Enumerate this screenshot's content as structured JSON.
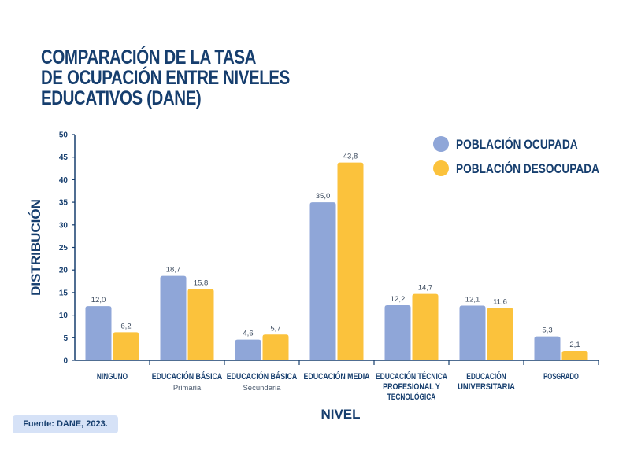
{
  "chart_data": {
    "type": "bar",
    "title": [
      "COMPARACIÓN DE LA TASA",
      "DE OCUPACIÓN ENTRE NIVELES",
      "EDUCATIVOS (DANE)"
    ],
    "xlabel": "NIVEL",
    "ylabel": "DISTRIBUCIÓN",
    "ylim": [
      0,
      50
    ],
    "yticks": [
      0,
      5,
      10,
      15,
      20,
      25,
      30,
      35,
      40,
      45,
      50
    ],
    "categories": [
      {
        "label": [
          "NINGUNO"
        ],
        "sublabel": ""
      },
      {
        "label": [
          "EDUCACIÓN BÁSICA"
        ],
        "sublabel": "Primaria"
      },
      {
        "label": [
          "EDUCACIÓN BÁSICA"
        ],
        "sublabel": "Secundaria"
      },
      {
        "label": [
          "EDUCACIÓN MEDIA"
        ],
        "sublabel": ""
      },
      {
        "label": [
          "EDUCACIÓN TÉCNICA",
          "PROFESIONAL Y",
          "TECNOLÓGICA"
        ],
        "sublabel": ""
      },
      {
        "label": [
          "EDUCACIÓN",
          "UNIVERSITARIA"
        ],
        "sublabel": ""
      },
      {
        "label": [
          "POSGRADO"
        ],
        "sublabel": ""
      }
    ],
    "series": [
      {
        "name": "POBLACIÓN OCUPADA",
        "color": "#8fa6d8",
        "values": [
          12.0,
          18.7,
          4.6,
          35.0,
          12.2,
          12.1,
          5.3
        ],
        "labels": [
          "12,0",
          "18,7",
          "4,6",
          "35,0",
          "12,2",
          "12,1",
          "5,3"
        ]
      },
      {
        "name": "POBLACIÓN DESOCUPADA",
        "color": "#fbc23c",
        "values": [
          6.2,
          15.8,
          5.7,
          43.8,
          14.7,
          11.6,
          2.1
        ],
        "labels": [
          "6,2",
          "15,8",
          "5,7",
          "43,8",
          "14,7",
          "11,6",
          "2,1"
        ]
      }
    ],
    "legend": "top-right",
    "grid": false,
    "axis_color": "#163e6e"
  },
  "source": "Fuente: DANE, 2023."
}
